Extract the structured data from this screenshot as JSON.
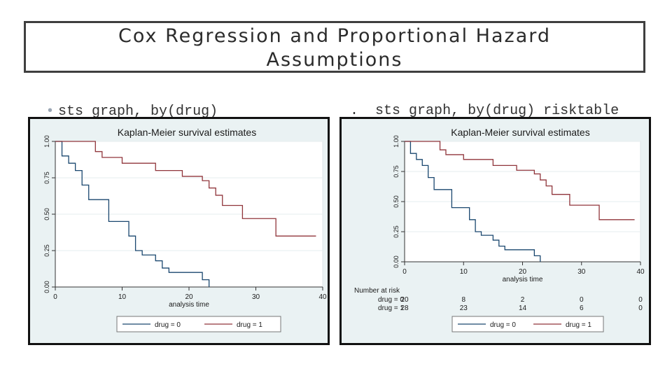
{
  "slide": {
    "title_line1": "Cox Regression and Proportional Hazard",
    "title_line2": "Assumptions",
    "bullet_left": "sts graph, by(drug)",
    "bullet_right_marker": ".",
    "bullet_right": "sts graph, by(drug) risktable",
    "bullet_color": "#9aa6b4"
  },
  "colors": {
    "drug0": "#1a476f",
    "drug1": "#90353b",
    "panel_bg": "#eaf2f3",
    "plot_bg": "#ffffff"
  },
  "chart_data": [
    {
      "type": "line",
      "title": "Kaplan-Meier survival estimates",
      "xlabel": "analysis time",
      "ylabel": "",
      "xlim": [
        0,
        40
      ],
      "ylim": [
        0,
        1
      ],
      "xticks": [
        "0",
        "10",
        "20",
        "30",
        "40"
      ],
      "yticks": [
        "0.00",
        "0.25",
        "0.50",
        "0.75",
        "1.00"
      ],
      "grid": true,
      "legend": "bottom",
      "series": [
        {
          "name": "drug = 0",
          "step": true,
          "x": [
            0,
            1,
            2,
            3,
            4,
            5,
            8,
            11,
            12,
            13,
            15,
            16,
            17,
            22,
            23
          ],
          "y": [
            1.0,
            0.9,
            0.85,
            0.8,
            0.7,
            0.6,
            0.45,
            0.35,
            0.25,
            0.22,
            0.18,
            0.13,
            0.1,
            0.05,
            0.0
          ]
        },
        {
          "name": "drug = 1",
          "step": true,
          "x": [
            0,
            6,
            7,
            10,
            15,
            19,
            22,
            23,
            24,
            25,
            28,
            33,
            39
          ],
          "y": [
            1.0,
            0.93,
            0.89,
            0.85,
            0.8,
            0.76,
            0.73,
            0.68,
            0.63,
            0.56,
            0.47,
            0.35,
            0.35
          ]
        }
      ]
    },
    {
      "type": "line",
      "title": "Kaplan-Meier survival estimates",
      "xlabel": "analysis time",
      "ylabel": "",
      "xlim": [
        0,
        40
      ],
      "ylim": [
        0,
        1
      ],
      "xticks": [
        "0",
        "10",
        "20",
        "30",
        "40"
      ],
      "yticks": [
        "0.00",
        "0.25",
        "0.50",
        "0.75",
        "1.00"
      ],
      "grid": true,
      "legend": "bottom",
      "series": [
        {
          "name": "drug = 0",
          "step": true,
          "x": [
            0,
            1,
            2,
            3,
            4,
            5,
            8,
            11,
            12,
            13,
            15,
            16,
            17,
            22,
            23
          ],
          "y": [
            1.0,
            0.9,
            0.85,
            0.8,
            0.7,
            0.6,
            0.45,
            0.35,
            0.25,
            0.22,
            0.18,
            0.13,
            0.1,
            0.05,
            0.0
          ]
        },
        {
          "name": "drug = 1",
          "step": true,
          "x": [
            0,
            6,
            7,
            10,
            15,
            19,
            22,
            23,
            24,
            25,
            28,
            33,
            39
          ],
          "y": [
            1.0,
            0.93,
            0.89,
            0.85,
            0.8,
            0.76,
            0.73,
            0.68,
            0.63,
            0.56,
            0.47,
            0.35,
            0.35
          ]
        }
      ],
      "risktable": {
        "header": "Number at risk",
        "rows": [
          {
            "label": "drug = 0",
            "values": [
              "20",
              "8",
              "2",
              "0",
              "0"
            ]
          },
          {
            "label": "drug = 1",
            "values": [
              "28",
              "23",
              "14",
              "6",
              "0"
            ]
          }
        ]
      }
    }
  ]
}
